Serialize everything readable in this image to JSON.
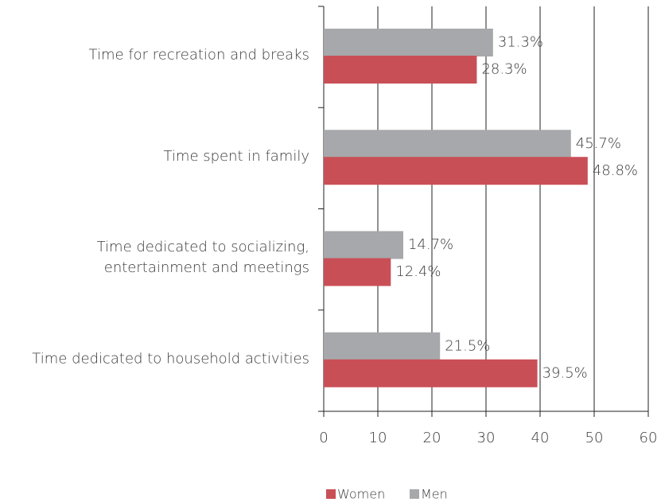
{
  "chart_data": {
    "type": "hbar",
    "categories": [
      "Time for recreation and breaks",
      "Time spent in family",
      "Time dedicated to socializing,\nentertainment and meetings",
      "Time dedicated to household activities"
    ],
    "series": [
      {
        "name": "Men",
        "color": "#a7a8ab",
        "values": [
          31.3,
          45.7,
          14.7,
          21.5
        ],
        "value_labels": [
          "31.3%",
          "45.7%",
          "14.7%",
          "21.5%"
        ]
      },
      {
        "name": "Women",
        "color": "#c94f57",
        "values": [
          28.3,
          48.8,
          12.4,
          39.5
        ],
        "value_labels": [
          "28.3%",
          "48.8%",
          "12.4%",
          "39.5%"
        ]
      }
    ],
    "legend_order": [
      "Women",
      "Men"
    ],
    "xlim": [
      0,
      60
    ],
    "xticks": [
      0,
      10,
      20,
      30,
      40,
      50,
      60
    ],
    "grid": true,
    "legend": "bottom"
  }
}
